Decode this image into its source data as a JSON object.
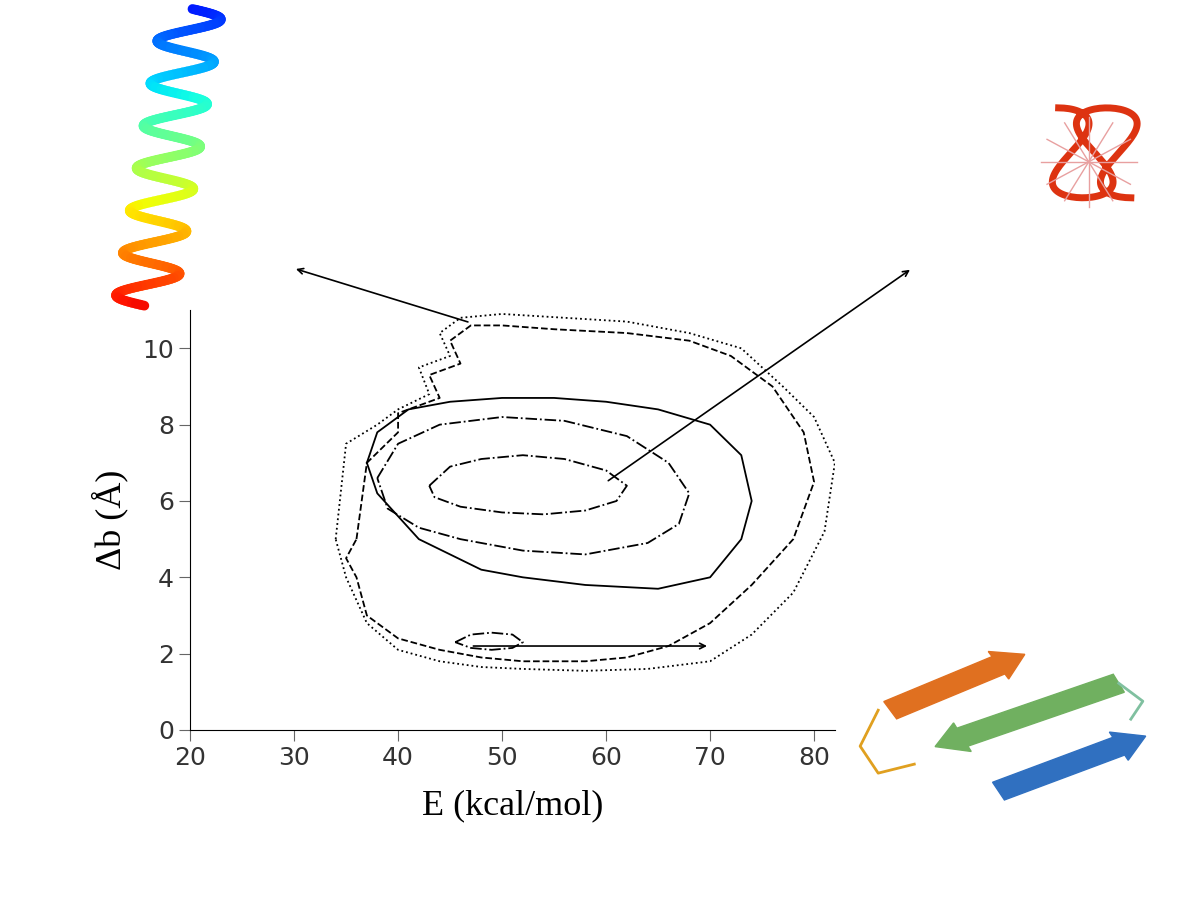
{
  "chart_data": {
    "type": "contour_lines",
    "xlabel": "E (kcal/mol)",
    "ylabel": "Δb (Å)",
    "xlim": [
      20,
      82
    ],
    "xticks": [
      20,
      30,
      40,
      50,
      60,
      70,
      80
    ],
    "ylim": [
      0,
      11
    ],
    "yticks": [
      0,
      2,
      4,
      6,
      8,
      10
    ],
    "color": "#000000",
    "series": [
      {
        "line_style": "dashdot",
        "x": [
          43,
          45,
          48,
          52,
          56,
          60,
          62,
          61,
          58,
          54,
          50,
          46,
          43.5,
          43
        ],
        "y": [
          6.4,
          6.9,
          7.1,
          7.2,
          7.1,
          6.8,
          6.4,
          6.0,
          5.75,
          5.65,
          5.7,
          5.85,
          6.1,
          6.4
        ]
      },
      {
        "line_style": "dashdot",
        "x": [
          45.5,
          47,
          49,
          51,
          52,
          51,
          49,
          47,
          45.5
        ],
        "y": [
          2.3,
          2.5,
          2.55,
          2.5,
          2.3,
          2.15,
          2.1,
          2.15,
          2.3
        ]
      },
      {
        "line_style": "dashdot",
        "x": [
          38,
          40,
          44,
          50,
          56,
          62,
          66,
          68,
          67,
          64,
          58,
          52,
          46,
          42,
          39,
          38
        ],
        "y": [
          6.6,
          7.5,
          8.0,
          8.2,
          8.1,
          7.7,
          7.0,
          6.2,
          5.4,
          4.9,
          4.6,
          4.7,
          5.0,
          5.3,
          5.8,
          6.6
        ]
      },
      {
        "line_style": "solid",
        "x": [
          37,
          38,
          41,
          45,
          50,
          55,
          60,
          65,
          70,
          73,
          74,
          73,
          70,
          65,
          58,
          52,
          48,
          45,
          42,
          40,
          38,
          37
        ],
        "y": [
          7.0,
          7.8,
          8.4,
          8.6,
          8.7,
          8.7,
          8.6,
          8.4,
          8.0,
          7.2,
          6.0,
          5.0,
          4.0,
          3.7,
          3.8,
          4.0,
          4.2,
          4.6,
          5.0,
          5.6,
          6.2,
          7.0
        ]
      },
      {
        "line_style": "dashed",
        "x": [
          36,
          37,
          40,
          40,
          44,
          43,
          46,
          45,
          47,
          50,
          55,
          62,
          68,
          72,
          76,
          79,
          80,
          78,
          74,
          70,
          66,
          62,
          58,
          52,
          48,
          44,
          40,
          37,
          36,
          35,
          36
        ],
        "y": [
          5.0,
          7.0,
          7.8,
          8.3,
          8.7,
          9.3,
          9.6,
          10.2,
          10.6,
          10.6,
          10.5,
          10.4,
          10.2,
          9.8,
          9.0,
          7.8,
          6.5,
          5.0,
          3.8,
          2.8,
          2.2,
          1.9,
          1.8,
          1.8,
          1.9,
          2.1,
          2.4,
          3.0,
          4.0,
          4.5,
          5.0
        ]
      },
      {
        "line_style": "dotted",
        "x": [
          34,
          35,
          38,
          40,
          43,
          42,
          45,
          44,
          46,
          50,
          56,
          62,
          68,
          73,
          77,
          80,
          82,
          81,
          78,
          74,
          70,
          64,
          58,
          52,
          48,
          44,
          40,
          37,
          35,
          34
        ],
        "y": [
          5.0,
          7.5,
          8.0,
          8.4,
          8.8,
          9.5,
          9.8,
          10.4,
          10.8,
          10.9,
          10.8,
          10.7,
          10.4,
          10.0,
          9.0,
          8.2,
          7.0,
          5.2,
          3.6,
          2.5,
          1.8,
          1.6,
          1.55,
          1.6,
          1.65,
          1.8,
          2.1,
          2.8,
          4.0,
          5.0
        ]
      }
    ]
  }
}
